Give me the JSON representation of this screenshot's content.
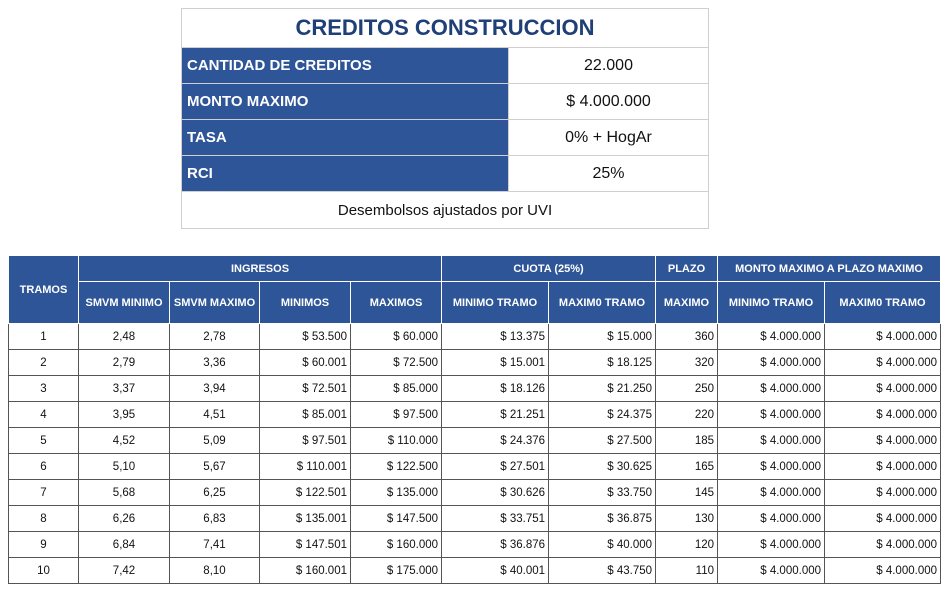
{
  "summary": {
    "title": "CREDITOS CONSTRUCCION",
    "rows": [
      {
        "label": "CANTIDAD DE CREDITOS",
        "value": "22.000"
      },
      {
        "label": "MONTO MAXIMO",
        "value": "$ 4.000.000"
      },
      {
        "label": "TASA",
        "value": "0% + HogAr"
      },
      {
        "label": "RCI",
        "value": "25%"
      }
    ],
    "note": "Desembolsos ajustados por UVI"
  },
  "table": {
    "group_headers": {
      "tramos": "TRAMOS",
      "ingresos": "INGRESOS",
      "cuota": "CUOTA (25%)",
      "plazo": "PLAZO",
      "monto": "MONTO MAXIMO A PLAZO MAXIMO"
    },
    "sub_headers": {
      "smvm_min": "SMVM MINIMO",
      "smvm_max": "SMVM MAXIMO",
      "minimos": "MINIMOS",
      "maximos": "MAXIMOS",
      "cuota_min": "MINIMO TRAMO",
      "cuota_max": "MAXIM0 TRAMO",
      "plazo_max": "MAXIMO",
      "monto_min": "MINIMO TRAMO",
      "monto_max": "MAXIM0 TRAMO"
    },
    "rows": [
      {
        "tramo": "1",
        "smvm_min": "2,48",
        "smvm_max": "2,78",
        "ing_min": "$ 53.500",
        "ing_max": "$ 60.000",
        "cuota_min": "$ 13.375",
        "cuota_max": "$ 15.000",
        "plazo": "360",
        "monto_min": "$ 4.000.000",
        "monto_max": "$ 4.000.000"
      },
      {
        "tramo": "2",
        "smvm_min": "2,79",
        "smvm_max": "3,36",
        "ing_min": "$ 60.001",
        "ing_max": "$ 72.500",
        "cuota_min": "$ 15.001",
        "cuota_max": "$ 18.125",
        "plazo": "320",
        "monto_min": "$ 4.000.000",
        "monto_max": "$ 4.000.000"
      },
      {
        "tramo": "3",
        "smvm_min": "3,37",
        "smvm_max": "3,94",
        "ing_min": "$ 72.501",
        "ing_max": "$ 85.000",
        "cuota_min": "$ 18.126",
        "cuota_max": "$ 21.250",
        "plazo": "250",
        "monto_min": "$ 4.000.000",
        "monto_max": "$ 4.000.000"
      },
      {
        "tramo": "4",
        "smvm_min": "3,95",
        "smvm_max": "4,51",
        "ing_min": "$ 85.001",
        "ing_max": "$ 97.500",
        "cuota_min": "$ 21.251",
        "cuota_max": "$ 24.375",
        "plazo": "220",
        "monto_min": "$ 4.000.000",
        "monto_max": "$ 4.000.000"
      },
      {
        "tramo": "5",
        "smvm_min": "4,52",
        "smvm_max": "5,09",
        "ing_min": "$ 97.501",
        "ing_max": "$ 110.000",
        "cuota_min": "$ 24.376",
        "cuota_max": "$ 27.500",
        "plazo": "185",
        "monto_min": "$ 4.000.000",
        "monto_max": "$ 4.000.000"
      },
      {
        "tramo": "6",
        "smvm_min": "5,10",
        "smvm_max": "5,67",
        "ing_min": "$ 110.001",
        "ing_max": "$ 122.500",
        "cuota_min": "$ 27.501",
        "cuota_max": "$ 30.625",
        "plazo": "165",
        "monto_min": "$ 4.000.000",
        "monto_max": "$ 4.000.000"
      },
      {
        "tramo": "7",
        "smvm_min": "5,68",
        "smvm_max": "6,25",
        "ing_min": "$ 122.501",
        "ing_max": "$ 135.000",
        "cuota_min": "$ 30.626",
        "cuota_max": "$ 33.750",
        "plazo": "145",
        "monto_min": "$ 4.000.000",
        "monto_max": "$ 4.000.000"
      },
      {
        "tramo": "8",
        "smvm_min": "6,26",
        "smvm_max": "6,83",
        "ing_min": "$ 135.001",
        "ing_max": "$ 147.500",
        "cuota_min": "$ 33.751",
        "cuota_max": "$ 36.875",
        "plazo": "130",
        "monto_min": "$ 4.000.000",
        "monto_max": "$ 4.000.000"
      },
      {
        "tramo": "9",
        "smvm_min": "6,84",
        "smvm_max": "7,41",
        "ing_min": "$ 147.501",
        "ing_max": "$ 160.000",
        "cuota_min": "$ 36.876",
        "cuota_max": "$ 40.000",
        "plazo": "120",
        "monto_min": "$ 4.000.000",
        "monto_max": "$ 4.000.000"
      },
      {
        "tramo": "10",
        "smvm_min": "7,42",
        "smvm_max": "8,10",
        "ing_min": "$ 160.001",
        "ing_max": "$ 175.000",
        "cuota_min": "$ 40.001",
        "cuota_max": "$ 43.750",
        "plazo": "110",
        "monto_min": "$ 4.000.000",
        "monto_max": "$ 4.000.000"
      }
    ]
  },
  "colors": {
    "header_blue": "#2e5597",
    "title_blue": "#1f3f77"
  }
}
